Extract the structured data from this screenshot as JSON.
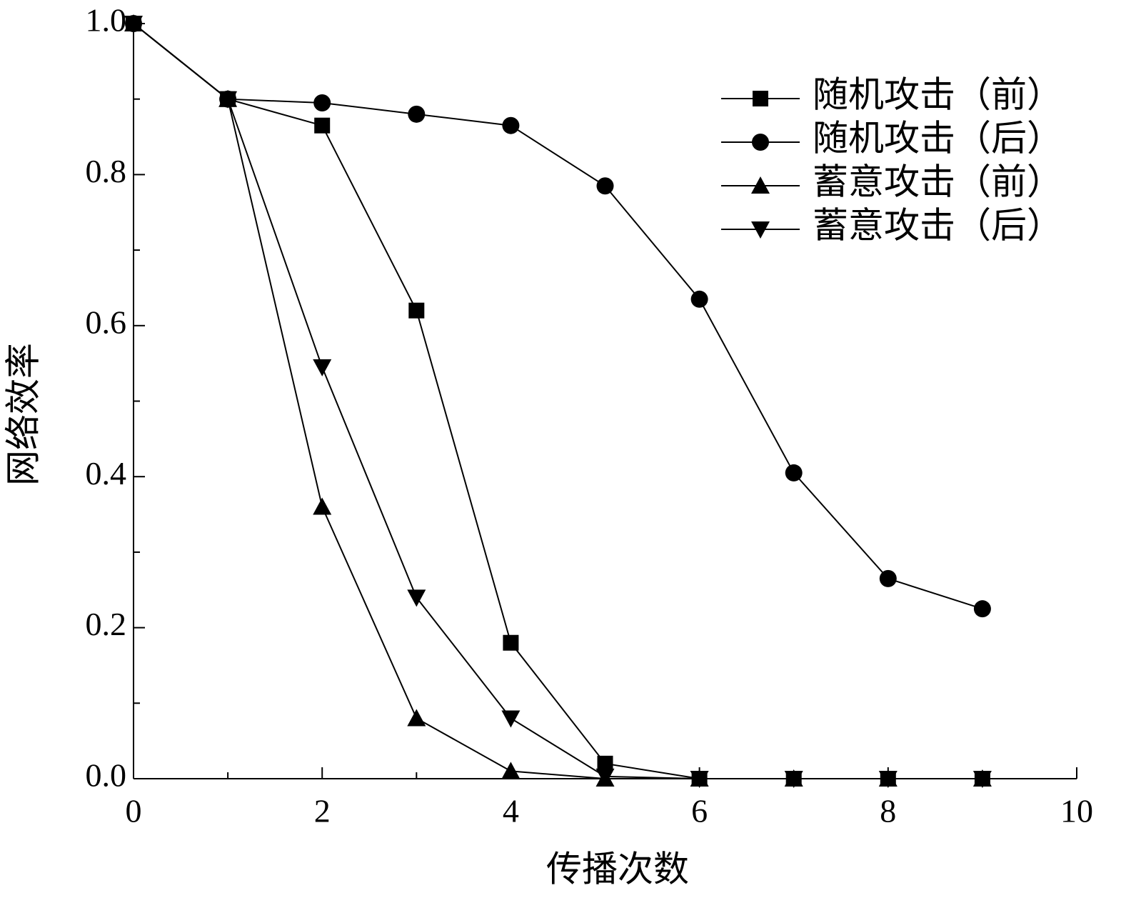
{
  "chart_data": {
    "type": "line",
    "x_label": "传播次数",
    "y_label": "网络效率",
    "xlim": [
      0,
      10
    ],
    "xticks": [
      0,
      2,
      4,
      6,
      8,
      10
    ],
    "xminorticks": [
      1,
      3,
      5,
      7,
      9
    ],
    "ylim": [
      0,
      1
    ],
    "yticks": [
      {
        "value": 0,
        "label": "0.0"
      },
      0.2,
      0.4,
      0.6,
      0.8,
      {
        "value": 1,
        "label": "1.0"
      }
    ],
    "yminorticks": [
      0.1,
      0.3,
      0.5,
      0.7,
      0.9
    ],
    "legend": "top-right",
    "series": [
      {
        "name": "随机攻击（前）",
        "color": "#000000",
        "marker": "square",
        "x": [
          0,
          1,
          2,
          3,
          4,
          5,
          6,
          7,
          8,
          9
        ],
        "values": [
          1.0,
          0.9,
          0.865,
          0.62,
          0.18,
          0.02,
          0,
          0,
          0,
          0
        ]
      },
      {
        "name": "随机攻击（后）",
        "color": "#000000",
        "marker": "circle",
        "x": [
          0,
          1,
          2,
          3,
          4,
          5,
          6,
          7,
          8,
          9
        ],
        "values": [
          1.0,
          0.9,
          0.895,
          0.88,
          0.865,
          0.785,
          0.635,
          0.405,
          0.265,
          0.225
        ]
      },
      {
        "name": "蓄意攻击（前）",
        "color": "#000000",
        "marker": "triangle-up",
        "x": [
          0,
          1,
          2,
          3,
          4,
          5,
          6,
          7,
          8,
          9
        ],
        "values": [
          1.0,
          0.9,
          0.36,
          0.08,
          0.01,
          0,
          0,
          0,
          0,
          0
        ]
      },
      {
        "name": "蓄意攻击（后）",
        "color": "#000000",
        "marker": "triangle-down",
        "x": [
          0,
          1,
          2,
          3,
          4,
          5,
          6,
          7,
          8,
          9
        ],
        "values": [
          1.0,
          0.9,
          0.545,
          0.24,
          0.08,
          0.003,
          0,
          0,
          0,
          0
        ]
      }
    ]
  }
}
